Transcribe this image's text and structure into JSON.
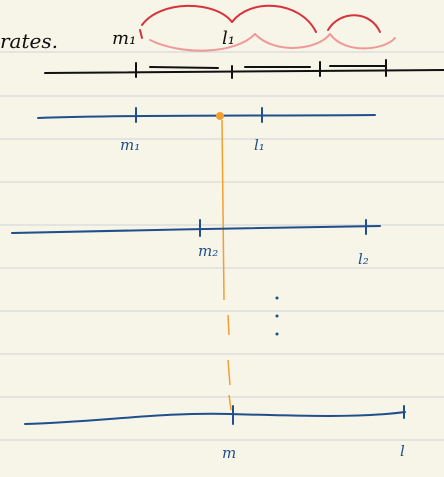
{
  "heading_fragment": "rates.",
  "top_labels": {
    "m": "m₁",
    "l": "l₁"
  },
  "rows": [
    {
      "m": "m₁",
      "l": "l₁"
    },
    {
      "m": "m₂",
      "l": "l₂"
    },
    {
      "m": "m",
      "l": "l"
    }
  ]
}
